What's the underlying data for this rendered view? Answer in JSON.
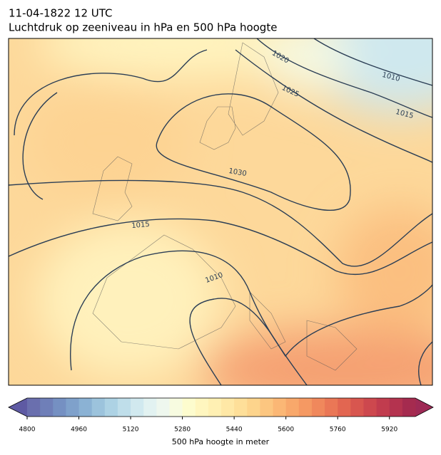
{
  "header": {
    "title": "11-04-1822 12 UTC",
    "subtitle": "Luchtdruk op zeeniveau in hPa en 500 hPa hoogte"
  },
  "map": {
    "contour_labels": [
      1020,
      1010,
      1025,
      1015,
      1030,
      1015,
      1010
    ]
  },
  "colorbar": {
    "label": "500 hPa hoogte in meter",
    "lim": [
      4800,
      6000
    ],
    "ticks": [
      4800,
      4960,
      5120,
      5280,
      5440,
      5600,
      5760,
      5920
    ],
    "colors": [
      "#6a6fae",
      "#6f7fb8",
      "#7590c2",
      "#7fa1cb",
      "#8bb2d4",
      "#9cc3dc",
      "#add2e4",
      "#bfdeea",
      "#d1e9ef",
      "#e2f2f1",
      "#eef7ee",
      "#f7fbe0",
      "#fdfcce",
      "#fff6bf",
      "#fff0b3",
      "#ffe8a6",
      "#fedf99",
      "#fdd48c",
      "#fcc680",
      "#fbb775",
      "#f8a86b",
      "#f59963",
      "#f0885c",
      "#ea7756",
      "#e26651",
      "#d8564f",
      "#cd484e",
      "#c13c4e",
      "#b4334f",
      "#a52b4f"
    ],
    "under_color": "#5e5aa3",
    "over_color": "#9e2a55"
  }
}
